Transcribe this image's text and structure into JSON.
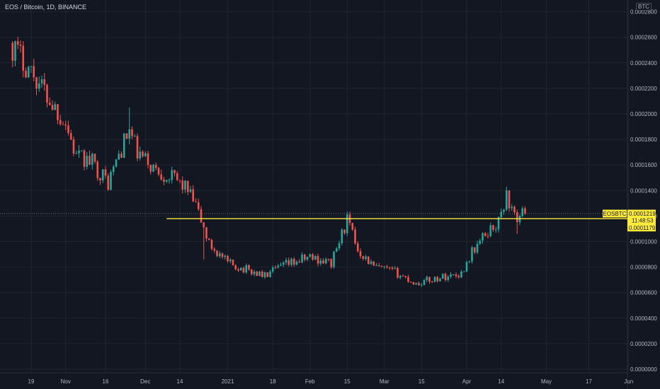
{
  "legend": {
    "symbol_line": "EOS / Bitcoin, 1D, BINANCE"
  },
  "currency_badge": "BTC",
  "price_badge": {
    "symbol": "EOSBTC",
    "price": "0.0001219",
    "countdown": "11:48:53",
    "line_price": "0.0001179"
  },
  "colors": {
    "background": "#131722",
    "grid": "#1f2430",
    "up": "#26a69a",
    "down": "#ef5350",
    "level_line": "#ffeb3b",
    "badge": "#ffeb3b",
    "axis_text": "#b2b5be"
  },
  "chart_data": {
    "type": "candlestick",
    "title": "",
    "y_axis": {
      "range": [
        0,
        0.00028
      ],
      "ticks": [
        "0.0000000",
        "0.0000200",
        "0.0000400",
        "0.0000600",
        "0.0000800",
        "0.0001000",
        "0.0001200",
        "0.0001400",
        "0.0001600",
        "0.0001800",
        "0.0002000",
        "0.0002200",
        "0.0002400",
        "0.0002600",
        "0.0002800"
      ],
      "tick_values": [
        0,
        2e-05,
        4e-05,
        6e-05,
        8e-05,
        0.0001,
        0.00012,
        0.00014,
        0.00016,
        0.00018,
        0.0002,
        0.00022,
        0.00024,
        0.00026,
        0.00028
      ],
      "position": "right"
    },
    "x_axis": {
      "ticks": [
        "19",
        "Nov",
        "16",
        "Dec",
        "14",
        "2021",
        "18",
        "Feb",
        "15",
        "Mar",
        "15",
        "Apr",
        "14",
        "May",
        "17",
        "Jun"
      ],
      "tick_dates": [
        "2020-10-19",
        "2020-11-01",
        "2020-11-16",
        "2020-12-01",
        "2020-12-14",
        "2021-01-01",
        "2021-01-18",
        "2021-02-01",
        "2021-02-15",
        "2021-03-01",
        "2021-03-15",
        "2021-04-01",
        "2021-04-14",
        "2021-05-01",
        "2021-05-17",
        "2021-06-01"
      ]
    },
    "horizontal_level": 0.0001179,
    "current_price": 0.0001219,
    "anchors": [
      {
        "date": "2020-10-12",
        "close": 0.000253
      },
      {
        "date": "2020-10-20",
        "close": 0.000231
      },
      {
        "date": "2020-10-26",
        "close": 0.000211
      },
      {
        "date": "2020-11-01",
        "close": 0.000193
      },
      {
        "date": "2020-11-05",
        "close": 0.000166
      },
      {
        "date": "2020-11-11",
        "close": 0.000162
      },
      {
        "date": "2020-11-17",
        "close": 0.000146
      },
      {
        "date": "2020-11-21",
        "close": 0.000168
      },
      {
        "date": "2020-11-25",
        "close": 0.000187
      },
      {
        "date": "2020-11-28",
        "close": 0.000169
      },
      {
        "date": "2020-12-05",
        "close": 0.000156
      },
      {
        "date": "2020-12-12",
        "close": 0.000149
      },
      {
        "date": "2020-12-16",
        "close": 0.000143
      },
      {
        "date": "2020-12-20",
        "close": 0.000128
      },
      {
        "date": "2020-12-25",
        "close": 9.8e-05
      },
      {
        "date": "2021-01-01",
        "close": 8.3e-05
      },
      {
        "date": "2021-01-08",
        "close": 7.8e-05
      },
      {
        "date": "2021-01-15",
        "close": 7.3e-05
      },
      {
        "date": "2021-01-22",
        "close": 8.1e-05
      },
      {
        "date": "2021-02-01",
        "close": 8.8e-05
      },
      {
        "date": "2021-02-09",
        "close": 8.3e-05
      },
      {
        "date": "2021-02-15",
        "close": 0.000117
      },
      {
        "date": "2021-02-19",
        "close": 9.4e-05
      },
      {
        "date": "2021-02-25",
        "close": 8e-05
      },
      {
        "date": "2021-03-05",
        "close": 7.6e-05
      },
      {
        "date": "2021-03-13",
        "close": 6.7e-05
      },
      {
        "date": "2021-03-20",
        "close": 7.1e-05
      },
      {
        "date": "2021-03-30",
        "close": 7.5e-05
      },
      {
        "date": "2021-04-03",
        "close": 9.2e-05
      },
      {
        "date": "2021-04-09",
        "close": 0.000108
      },
      {
        "date": "2021-04-13",
        "close": 0.000115
      },
      {
        "date": "2021-04-16",
        "close": 0.000136
      },
      {
        "date": "2021-04-19",
        "close": 0.000118
      },
      {
        "date": "2021-04-23",
        "close": 0.000122
      }
    ],
    "spikes": [
      {
        "date": "2020-11-25",
        "high": 0.000205,
        "low": 0.000176
      },
      {
        "date": "2020-12-23",
        "high": 0.000112,
        "low": 8.6e-05
      },
      {
        "date": "2021-02-15",
        "high": 0.000118,
        "low": 0.000105
      },
      {
        "date": "2021-04-16",
        "high": 0.000143,
        "low": 0.000128
      },
      {
        "date": "2021-04-20",
        "high": 0.000125,
        "low": 0.000106
      }
    ]
  }
}
